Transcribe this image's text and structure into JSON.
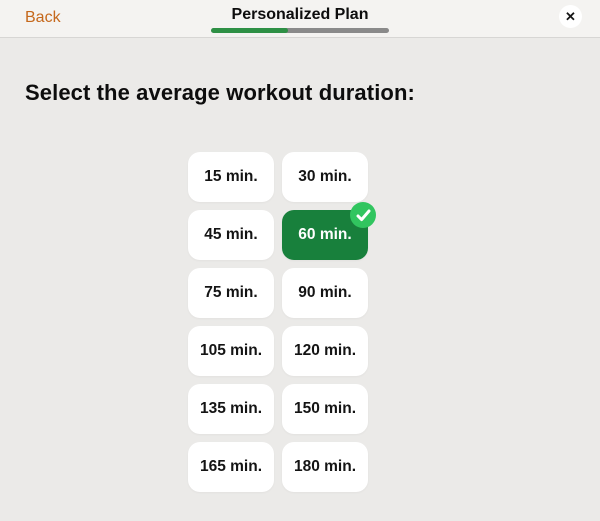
{
  "header": {
    "back_label": "Back",
    "title": "Personalized Plan",
    "progress_percent": 43
  },
  "icons": {
    "close": "✕",
    "selected_check": "✓"
  },
  "main": {
    "heading": "Select the average workout duration:",
    "options": [
      {
        "label": "15 min.",
        "selected": false
      },
      {
        "label": "30 min.",
        "selected": false
      },
      {
        "label": "45 min.",
        "selected": false
      },
      {
        "label": "60 min.",
        "selected": true
      },
      {
        "label": "75 min.",
        "selected": false
      },
      {
        "label": "90 min.",
        "selected": false
      },
      {
        "label": "105 min.",
        "selected": false
      },
      {
        "label": "120 min.",
        "selected": false
      },
      {
        "label": "135 min.",
        "selected": false
      },
      {
        "label": "150 min.",
        "selected": false
      },
      {
        "label": "165 min.",
        "selected": false
      },
      {
        "label": "180 min.",
        "selected": false
      }
    ]
  },
  "colors": {
    "selected_green": "#18803c",
    "badge_green": "#31c55f",
    "progress_green": "#2e9045",
    "progress_track_gray": "#8a8a8a",
    "back_orange": "#c5681c",
    "body_background": "#ebeae8"
  }
}
